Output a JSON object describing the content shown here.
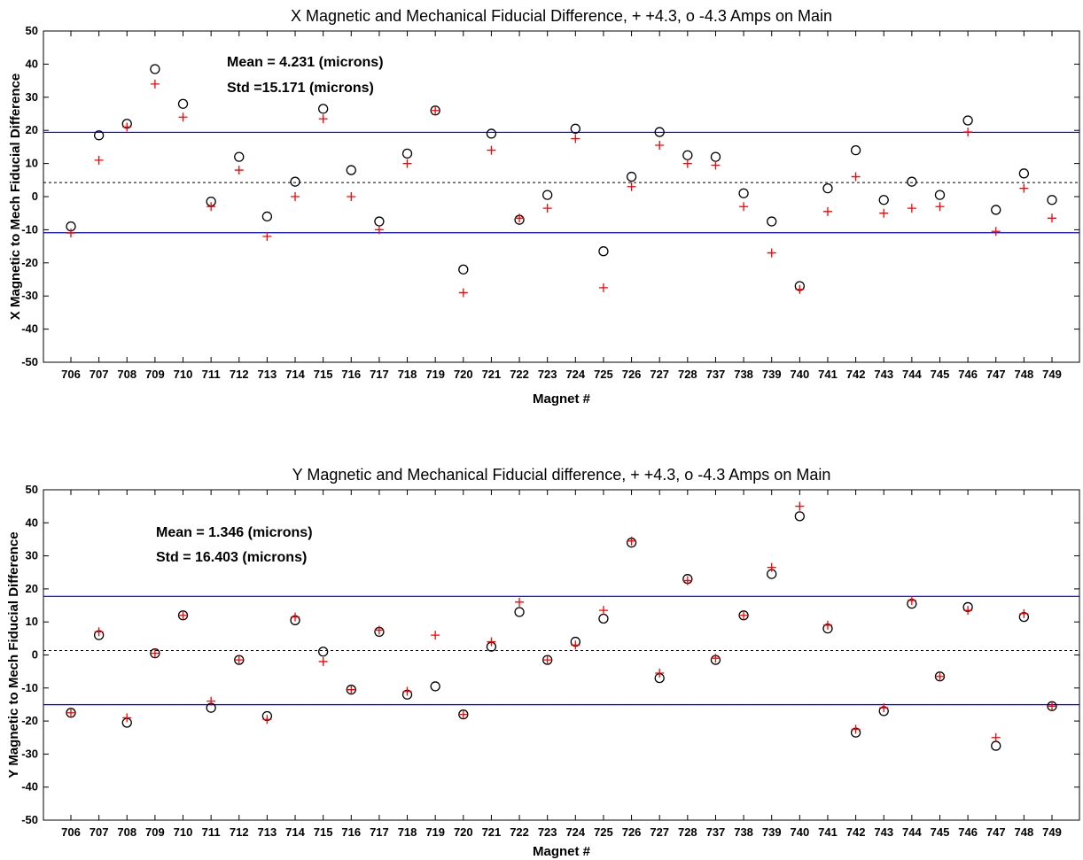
{
  "chart_data": [
    {
      "type": "scatter",
      "title": "X Magnetic and Mechanical Fiducial Difference, + +4.3, o -4.3 Amps on Main",
      "xlabel": "Magnet #",
      "ylabel": "X Magnetic to Mech Fiducial Difference",
      "ylim": [
        -50,
        50
      ],
      "yticks": [
        -50,
        -40,
        -30,
        -20,
        -10,
        0,
        10,
        20,
        30,
        40,
        50
      ],
      "categories": [
        "706",
        "707",
        "708",
        "709",
        "710",
        "711",
        "712",
        "713",
        "714",
        "715",
        "716",
        "717",
        "718",
        "719",
        "720",
        "721",
        "722",
        "723",
        "724",
        "725",
        "726",
        "727",
        "728",
        "737",
        "738",
        "739",
        "740",
        "741",
        "742",
        "743",
        "744",
        "745",
        "746",
        "747",
        "748",
        "749"
      ],
      "series": [
        {
          "marker": "circle",
          "color": "#000000",
          "values": [
            -9,
            18.5,
            22,
            38.5,
            28,
            -1.5,
            12,
            -6,
            4.5,
            26.5,
            8,
            -7.5,
            13,
            26,
            -22,
            19,
            -7,
            0.5,
            20.5,
            -16.5,
            6,
            19.5,
            12.5,
            12,
            1,
            -7.5,
            -27,
            2.5,
            14,
            -1,
            4.5,
            0.5,
            23,
            -4,
            7,
            -1
          ]
        },
        {
          "marker": "plus",
          "color": "#ff0000",
          "values": [
            -11,
            11,
            21,
            34,
            24,
            -3,
            8,
            -12,
            0,
            23.5,
            0,
            -10,
            10,
            26,
            -29,
            14,
            -6.5,
            -3.5,
            17.5,
            -27.5,
            3,
            15.5,
            10,
            9.5,
            -3,
            -17,
            -28,
            -4.5,
            6,
            -5,
            -3.5,
            -3,
            19.5,
            -10.5,
            2.5,
            -6.5
          ]
        }
      ],
      "mean_line": 4.231,
      "band_lines": [
        19.4,
        -10.9
      ],
      "annotations": [
        "Mean = 4.231 (microns)",
        "Std =15.171 (microns)"
      ],
      "grid": false
    },
    {
      "type": "scatter",
      "title": "Y Magnetic and Mechanical Fiducial difference, + +4.3, o -4.3 Amps on Main",
      "xlabel": "Magnet #",
      "ylabel": "Y Magnetic to Mech Fiducial Difference",
      "ylim": [
        -50,
        50
      ],
      "yticks": [
        -50,
        -40,
        -30,
        -20,
        -10,
        0,
        10,
        20,
        30,
        40,
        50
      ],
      "categories": [
        "706",
        "707",
        "708",
        "709",
        "710",
        "711",
        "712",
        "713",
        "714",
        "715",
        "716",
        "717",
        "718",
        "719",
        "720",
        "721",
        "722",
        "723",
        "724",
        "725",
        "726",
        "727",
        "728",
        "737",
        "738",
        "739",
        "740",
        "741",
        "742",
        "743",
        "744",
        "745",
        "746",
        "747",
        "748",
        "749"
      ],
      "series": [
        {
          "marker": "circle",
          "color": "#000000",
          "values": [
            -17.5,
            6,
            -20.5,
            0.5,
            12,
            -16,
            -1.5,
            -18.5,
            10.5,
            1,
            -10.5,
            7,
            -12,
            -9.5,
            -18,
            2.5,
            13,
            -1.5,
            4,
            11,
            34,
            -7,
            23,
            -1.5,
            12,
            24.5,
            42,
            8,
            -23.5,
            -17,
            15.5,
            -6.5,
            14.5,
            -27.5,
            11.5,
            -15.5
          ]
        },
        {
          "marker": "plus",
          "color": "#ff0000",
          "values": [
            -17.5,
            7,
            -19,
            0.5,
            12,
            -14,
            -1.5,
            -19.5,
            11.5,
            -2,
            -10.5,
            7.5,
            -11,
            6,
            -18,
            4,
            16,
            -1.5,
            3,
            13.5,
            34.5,
            -5.5,
            22.5,
            -1,
            12,
            26.5,
            45,
            9,
            -22.5,
            -16,
            16.5,
            -6.5,
            13.5,
            -25,
            12.5,
            -15.5
          ]
        }
      ],
      "mean_line": 1.346,
      "band_lines": [
        17.75,
        -15.05
      ],
      "annotations": [
        "Mean = 1.346 (microns)",
        "Std = 16.403 (microns)"
      ],
      "grid": false
    }
  ]
}
